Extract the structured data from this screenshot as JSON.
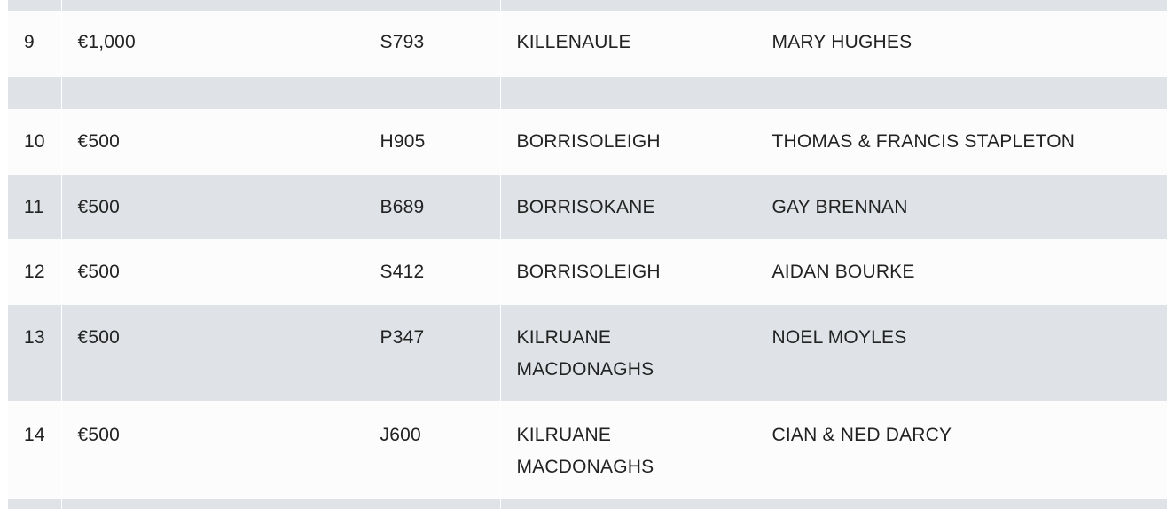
{
  "rows": [
    {
      "pos": "9",
      "prize": "€1,000",
      "ticket": "S793",
      "club": "KILLENAULE",
      "club2": "",
      "name": "MARY HUGHES"
    },
    {
      "pos": "10",
      "prize": "€500",
      "ticket": "H905",
      "club": "BORRISOLEIGH",
      "club2": "",
      "name": "THOMAS & FRANCIS STAPLETON"
    },
    {
      "pos": "11",
      "prize": "€500",
      "ticket": "B689",
      "club": "BORRISOKANE",
      "club2": "",
      "name": "GAY BRENNAN"
    },
    {
      "pos": "12",
      "prize": "€500",
      "ticket": "S412",
      "club": "BORRISOLEIGH",
      "club2": "",
      "name": "AIDAN BOURKE"
    },
    {
      "pos": "13",
      "prize": "€500",
      "ticket": "P347",
      "club": "KILRUANE",
      "club2": "MACDONAGHS",
      "name": "NOEL MOYLES"
    },
    {
      "pos": "14",
      "prize": "€500",
      "ticket": "J600",
      "club": "KILRUANE",
      "club2": "MACDONAGHS",
      "name": "CIAN & NED DARCY"
    }
  ]
}
